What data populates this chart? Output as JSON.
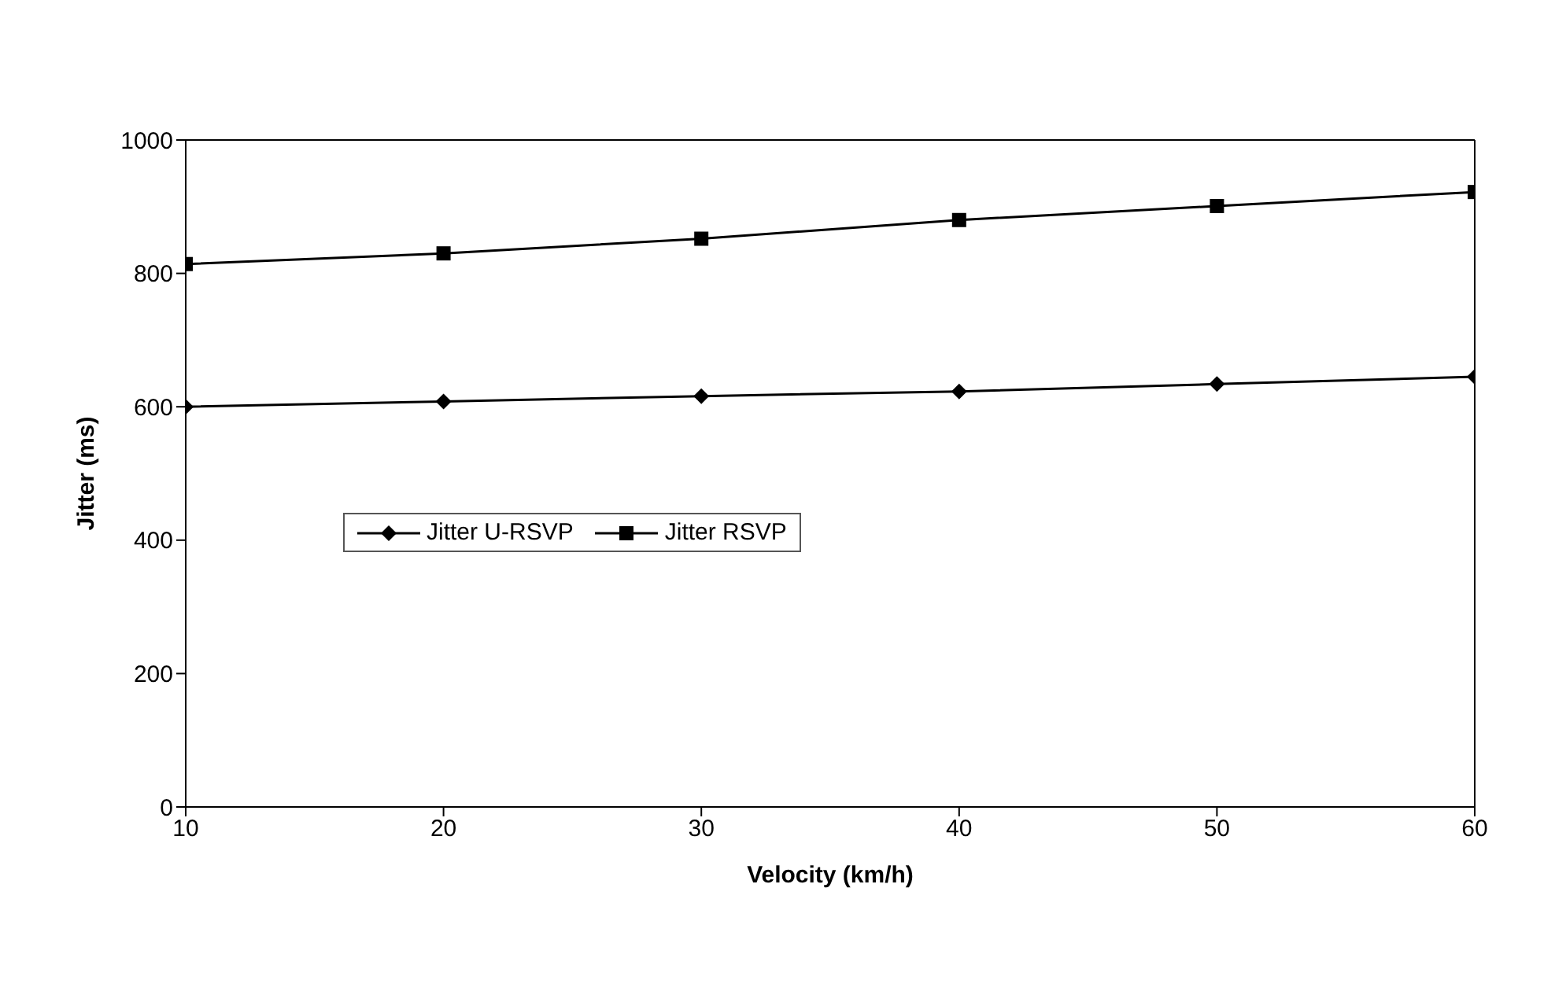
{
  "chart_data": {
    "type": "line",
    "xlabel": "Velocity (km/h)",
    "ylabel": "Jitter (ms)",
    "x": [
      10,
      20,
      30,
      40,
      50,
      60
    ],
    "series": [
      {
        "name": "Jitter U-RSVP",
        "color": "#000000",
        "marker": "diamond",
        "values": [
          600,
          608,
          616,
          623,
          634,
          645
        ]
      },
      {
        "name": "Jitter RSVP",
        "color": "#000000",
        "marker": "square",
        "values": [
          814,
          830,
          852,
          880,
          901,
          922
        ]
      }
    ],
    "xlim": [
      10,
      60
    ],
    "xticks": [
      10,
      20,
      30,
      40,
      50,
      60
    ],
    "ylim": [
      0,
      1000
    ],
    "yticks": [
      0,
      200,
      400,
      600,
      800,
      1000
    ],
    "grid": false,
    "legend": "left",
    "line_style": "solid"
  }
}
